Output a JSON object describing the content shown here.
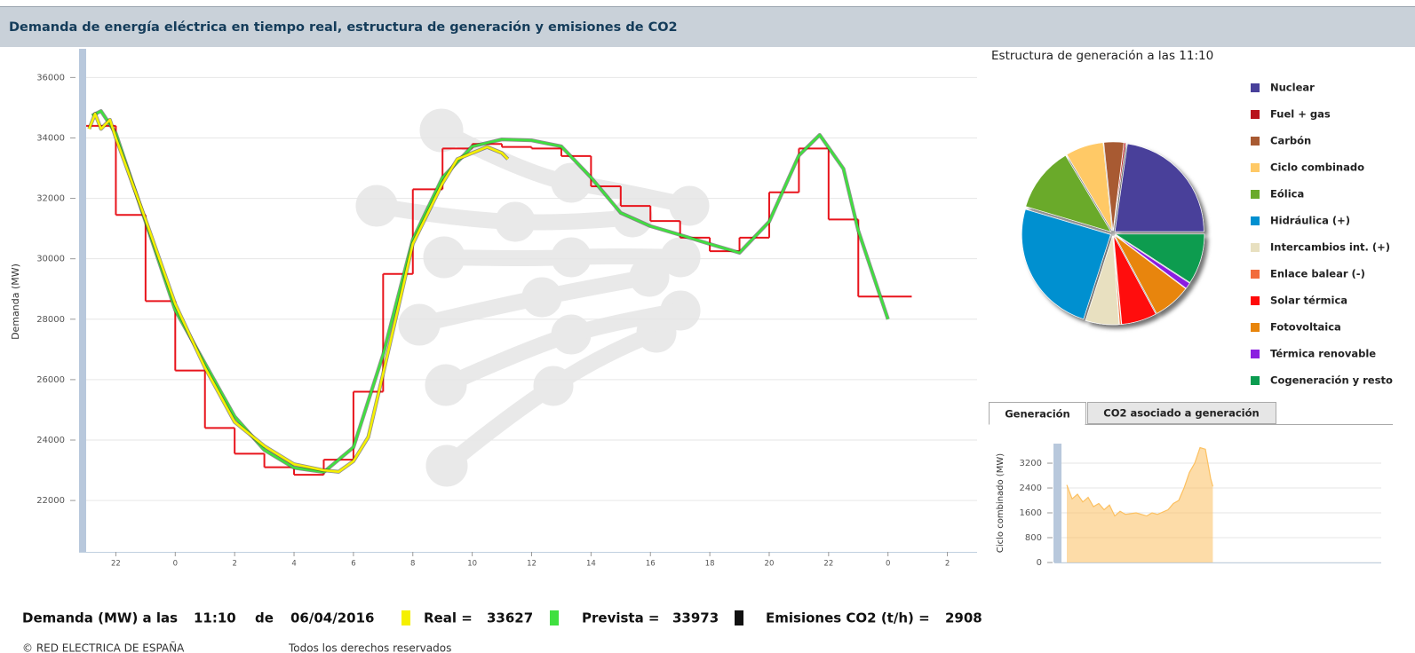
{
  "header": {
    "title": "Demanda de energía eléctrica en tiempo real, estructura de generación y emisiones de CO2"
  },
  "chart_data": [
    {
      "type": "line",
      "y_label": "Demanda (MW)",
      "xlim": [
        0,
        30
      ],
      "xticks": [
        {
          "value": 1,
          "label": "22"
        },
        {
          "value": 3,
          "label": "0"
        },
        {
          "value": 5,
          "label": "2"
        },
        {
          "value": 7,
          "label": "4"
        },
        {
          "value": 9,
          "label": "6"
        },
        {
          "value": 11,
          "label": "8"
        },
        {
          "value": 13,
          "label": "10"
        },
        {
          "value": 15,
          "label": "12"
        },
        {
          "value": 17,
          "label": "14"
        },
        {
          "value": 19,
          "label": "16"
        },
        {
          "value": 21,
          "label": "18"
        },
        {
          "value": 23,
          "label": "20"
        },
        {
          "value": 25,
          "label": "22"
        },
        {
          "value": 27,
          "label": "0"
        },
        {
          "value": 29,
          "label": "2"
        }
      ],
      "ylim": [
        20300,
        36950
      ],
      "yticks": [
        22000,
        24000,
        26000,
        28000,
        30000,
        32000,
        34000,
        36000
      ],
      "grid": true,
      "series": [
        {
          "color": "#e8141c",
          "step": true,
          "bins": [
            0,
            1,
            2,
            3,
            4,
            5,
            6,
            7,
            8,
            9,
            10,
            11,
            12,
            13,
            14,
            15,
            16,
            17,
            18,
            19,
            20,
            21,
            22,
            23,
            24,
            25,
            26,
            27.8
          ],
          "values": [
            34400,
            31450,
            28600,
            26300,
            24400,
            23550,
            23100,
            22850,
            23350,
            25600,
            29500,
            32300,
            33650,
            33800,
            33700,
            33650,
            33400,
            32400,
            31750,
            31250,
            30700,
            30250,
            30700,
            32200,
            33650,
            31300,
            28750
          ]
        },
        {
          "color": "#3fe03f",
          "x": [
            0.2,
            0.5,
            1,
            2,
            3,
            4,
            5,
            6,
            7,
            8,
            9,
            10,
            11,
            12,
            13,
            14,
            15,
            16,
            17,
            18,
            19,
            20,
            21,
            22,
            23,
            24,
            24.7,
            25.5,
            26,
            27
          ],
          "values": [
            34740,
            34890,
            34150,
            31230,
            28300,
            26540,
            24780,
            23670,
            23080,
            22940,
            23760,
            26830,
            30640,
            32690,
            33720,
            33950,
            33920,
            33720,
            32690,
            31520,
            31080,
            30790,
            30490,
            30200,
            31230,
            33420,
            34100,
            32980,
            30930,
            28000
          ]
        },
        {
          "color": "#f5f000",
          "x": [
            0.1,
            0.3,
            0.5,
            0.8,
            1,
            2,
            3,
            4,
            5,
            6,
            7,
            7.5,
            8,
            8.5,
            9,
            9.5,
            10,
            11,
            12,
            12.5,
            13,
            13.5,
            14,
            14.2
          ],
          "values": [
            34300,
            34800,
            34300,
            34600,
            34000,
            31300,
            28500,
            26400,
            24600,
            23800,
            23200,
            23100,
            23000,
            22950,
            23300,
            24100,
            26200,
            30500,
            32500,
            33300,
            33500,
            33700,
            33500,
            33300
          ]
        }
      ]
    },
    {
      "type": "pie",
      "title": "Estructura de generación a las 11:10",
      "categories": [
        "Nuclear",
        "Fuel + gas",
        "Carbón",
        "Ciclo combinado",
        "Eólica",
        "Hidráulica (+)",
        "Intercambios int. (+)",
        "Enlace balear (-)",
        "Solar térmica",
        "Fotovoltaica",
        "Térmica renovable",
        "Cogeneración y resto"
      ],
      "values": [
        22.8,
        0.3,
        3.6,
        6.9,
        11.9,
        24.7,
        6.1,
        0.3,
        6.4,
        6.9,
        1.1,
        9.2
      ],
      "colors": [
        "#48409a",
        "#b8121b",
        "#a85a32",
        "#ffc966",
        "#6aaa2a",
        "#0090d0",
        "#e8e0c0",
        "#f26c3c",
        "#ff0a0a",
        "#e8850b",
        "#8b1fe0",
        "#0a9c50"
      ]
    },
    {
      "type": "area",
      "y_label": "Ciclo combinado (MW)",
      "xlim": [
        0,
        30
      ],
      "ylim": [
        0,
        3830
      ],
      "yticks": [
        0,
        800,
        1600,
        2400,
        3200
      ],
      "grid": true,
      "series": [
        {
          "color": "#fcc060",
          "x": [
            0.5,
            1,
            1.5,
            2,
            2.5,
            3,
            3.5,
            4,
            4.5,
            5,
            5.5,
            6,
            7,
            8,
            8.5,
            9,
            10,
            10.5,
            11,
            11.5,
            12,
            12.5,
            13,
            13.5,
            14,
            14.2
          ],
          "values": [
            2500,
            2050,
            2200,
            1950,
            2100,
            1800,
            1900,
            1700,
            1850,
            1500,
            1650,
            1550,
            1600,
            1500,
            1600,
            1550,
            1700,
            1900,
            2000,
            2400,
            2900,
            3200,
            3700,
            3650,
            2700,
            2450
          ]
        }
      ]
    }
  ],
  "tabs": [
    "Generación",
    "CO2 asociado a generación"
  ],
  "footer": {
    "label": "Demanda (MW) a las",
    "time": "11:10",
    "de": "de",
    "date": "06/04/2016",
    "real_label": "Real =",
    "real": 33627,
    "prevista_label": "Prevista =",
    "prevista": 33973,
    "co2_label": "Emisiones CO2 (t/h) =",
    "co2": 2908
  },
  "copyright": [
    "© RED ELECTRICA DE ESPAÑA",
    "Todos los derechos reservados"
  ]
}
